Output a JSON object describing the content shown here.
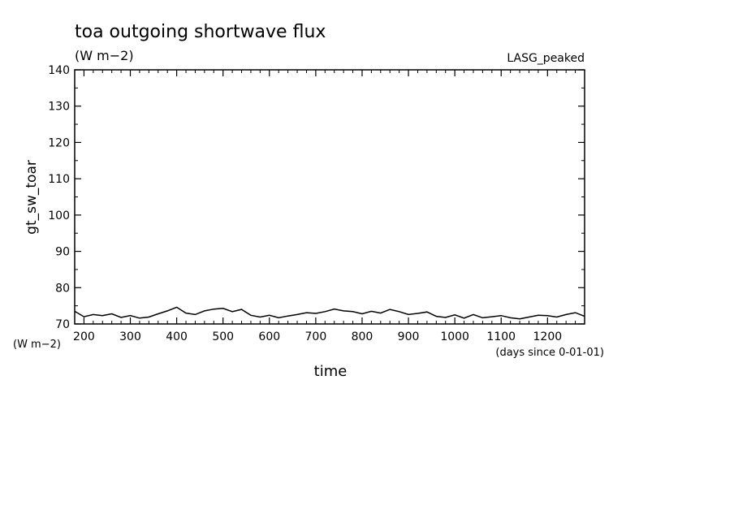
{
  "chart_data": {
    "type": "line",
    "title": "toa outgoing shortwave flux",
    "subtitle": "(W m−2)",
    "source_label": "LASG_peaked",
    "xlabel": "time",
    "x_units": "(days since 0-01-01)",
    "ylabel": "gt_sw_toar",
    "y_units": "(W m−2)",
    "xlim": [
      180,
      1280
    ],
    "ylim": [
      70,
      140
    ],
    "x_ticks": [
      200,
      300,
      400,
      500,
      600,
      700,
      800,
      900,
      1000,
      1100,
      1200
    ],
    "y_ticks": [
      70,
      80,
      90,
      100,
      110,
      120,
      130,
      140
    ],
    "grid": false,
    "line_color": "#000000",
    "series": [
      {
        "x": [
          180,
          200,
          220,
          240,
          260,
          280,
          300,
          320,
          340,
          360,
          380,
          400,
          420,
          440,
          460,
          480,
          500,
          520,
          540,
          560,
          580,
          600,
          620,
          640,
          660,
          680,
          700,
          720,
          740,
          760,
          780,
          800,
          820,
          840,
          860,
          880,
          900,
          920,
          940,
          960,
          980,
          1000,
          1020,
          1040,
          1060,
          1080,
          1100,
          1120,
          1140,
          1160,
          1180,
          1200,
          1220,
          1240,
          1260,
          1280
        ],
        "y": [
          73.5,
          72.0,
          72.6,
          72.3,
          72.8,
          71.8,
          72.3,
          71.6,
          71.9,
          72.8,
          73.6,
          74.6,
          73.0,
          72.6,
          73.6,
          74.1,
          74.3,
          73.4,
          74.0,
          72.4,
          71.9,
          72.4,
          71.7,
          72.2,
          72.6,
          73.1,
          72.9,
          73.4,
          74.1,
          73.6,
          73.4,
          72.8,
          73.5,
          73.0,
          74.0,
          73.4,
          72.6,
          72.9,
          73.3,
          72.1,
          71.8,
          72.5,
          71.6,
          72.6,
          71.7,
          72.0,
          72.3,
          71.7,
          71.4,
          71.9,
          72.4,
          72.3,
          71.9,
          72.6,
          73.1,
          72.1
        ]
      }
    ]
  }
}
